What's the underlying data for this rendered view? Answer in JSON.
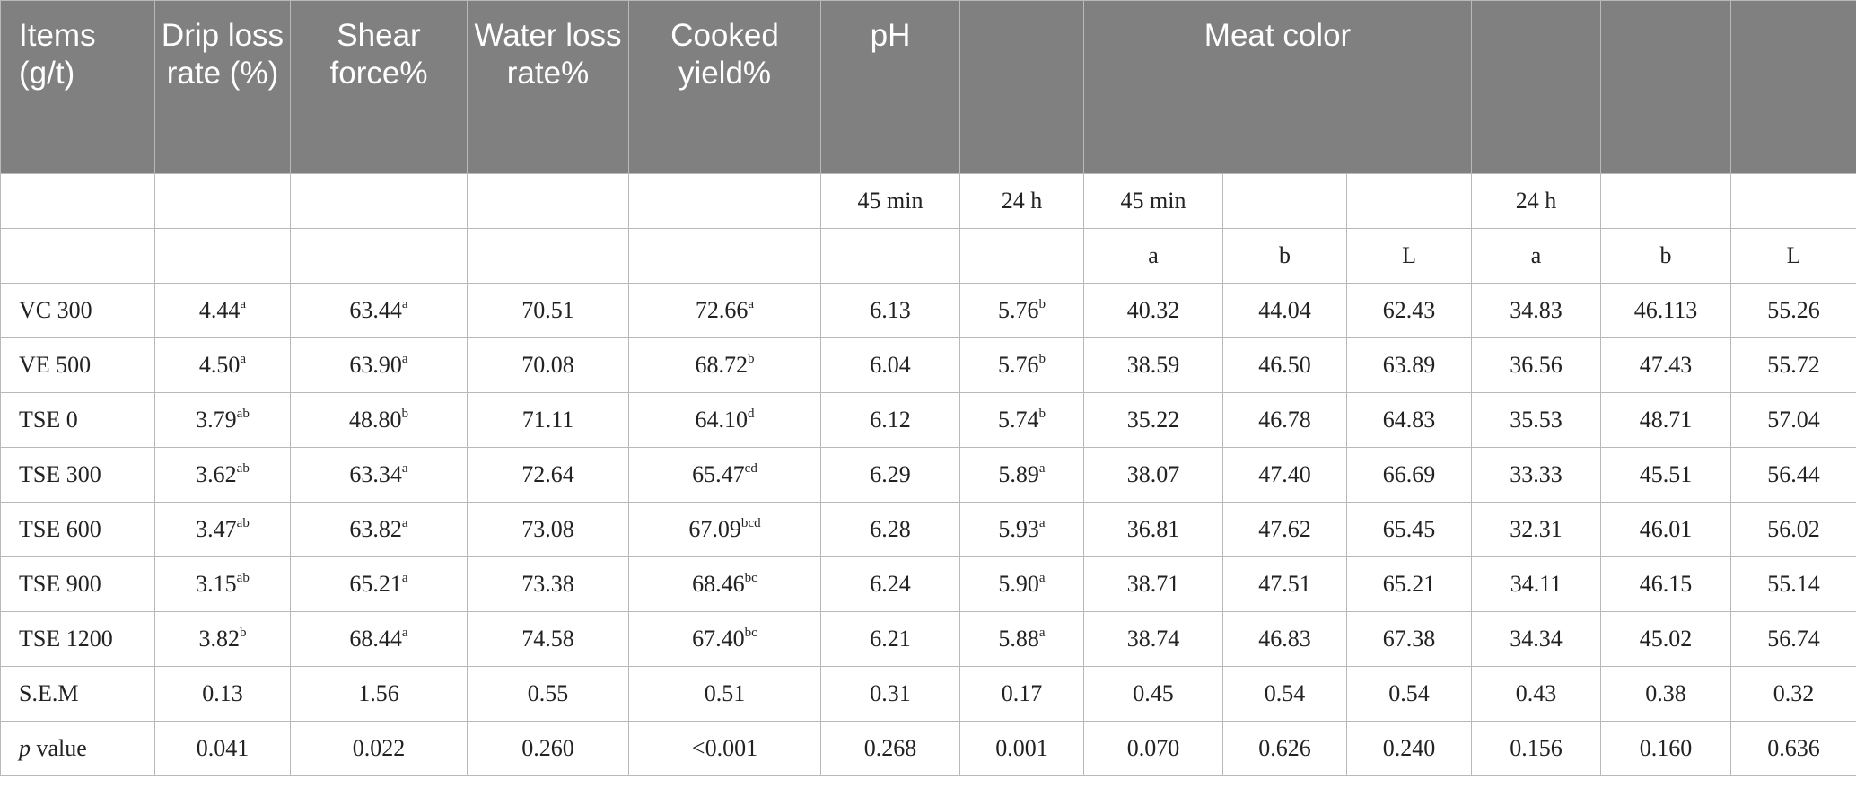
{
  "headers": {
    "items": "Items (g/t)",
    "drip": "Drip loss rate (%)",
    "shear": "Shear force%",
    "water": "Water loss rate%",
    "cooked": "Cooked yield%",
    "ph": "pH",
    "meat_color": "Meat color"
  },
  "subheader_time": [
    "",
    "",
    "",
    "",
    "",
    "45 min",
    "24 h",
    "45 min",
    "",
    "",
    "24 h",
    "",
    ""
  ],
  "subheader_color": [
    "",
    "",
    "",
    "",
    "",
    "",
    "",
    "a",
    "b",
    "L",
    "a",
    "b",
    "L"
  ],
  "rows": [
    {
      "label": "VC 300",
      "cells": [
        {
          "v": "4.44",
          "s": "a"
        },
        {
          "v": "63.44",
          "s": "a"
        },
        {
          "v": "70.51",
          "s": ""
        },
        {
          "v": "72.66",
          "s": "a"
        },
        {
          "v": "6.13",
          "s": ""
        },
        {
          "v": "5.76",
          "s": "b"
        },
        {
          "v": "40.32",
          "s": ""
        },
        {
          "v": "44.04",
          "s": ""
        },
        {
          "v": "62.43",
          "s": ""
        },
        {
          "v": "34.83",
          "s": ""
        },
        {
          "v": "46.113",
          "s": ""
        },
        {
          "v": "55.26",
          "s": ""
        }
      ]
    },
    {
      "label": "VE 500",
      "cells": [
        {
          "v": "4.50",
          "s": "a"
        },
        {
          "v": "63.90",
          "s": "a"
        },
        {
          "v": "70.08",
          "s": ""
        },
        {
          "v": "68.72",
          "s": "b"
        },
        {
          "v": "6.04",
          "s": ""
        },
        {
          "v": "5.76",
          "s": "b"
        },
        {
          "v": "38.59",
          "s": ""
        },
        {
          "v": "46.50",
          "s": ""
        },
        {
          "v": "63.89",
          "s": ""
        },
        {
          "v": "36.56",
          "s": ""
        },
        {
          "v": "47.43",
          "s": ""
        },
        {
          "v": "55.72",
          "s": ""
        }
      ]
    },
    {
      "label": "TSE 0",
      "cells": [
        {
          "v": "3.79",
          "s": "ab"
        },
        {
          "v": "48.80",
          "s": "b"
        },
        {
          "v": "71.11",
          "s": ""
        },
        {
          "v": "64.10",
          "s": "d"
        },
        {
          "v": "6.12",
          "s": ""
        },
        {
          "v": "5.74",
          "s": "b"
        },
        {
          "v": "35.22",
          "s": ""
        },
        {
          "v": "46.78",
          "s": ""
        },
        {
          "v": "64.83",
          "s": ""
        },
        {
          "v": "35.53",
          "s": ""
        },
        {
          "v": "48.71",
          "s": ""
        },
        {
          "v": "57.04",
          "s": ""
        }
      ]
    },
    {
      "label": "TSE 300",
      "cells": [
        {
          "v": "3.62",
          "s": "ab"
        },
        {
          "v": "63.34",
          "s": "a"
        },
        {
          "v": "72.64",
          "s": ""
        },
        {
          "v": "65.47",
          "s": "cd"
        },
        {
          "v": "6.29",
          "s": ""
        },
        {
          "v": "5.89",
          "s": "a"
        },
        {
          "v": "38.07",
          "s": ""
        },
        {
          "v": "47.40",
          "s": ""
        },
        {
          "v": "66.69",
          "s": ""
        },
        {
          "v": "33.33",
          "s": ""
        },
        {
          "v": "45.51",
          "s": ""
        },
        {
          "v": "56.44",
          "s": ""
        }
      ]
    },
    {
      "label": "TSE 600",
      "cells": [
        {
          "v": "3.47",
          "s": "ab"
        },
        {
          "v": "63.82",
          "s": "a"
        },
        {
          "v": "73.08",
          "s": ""
        },
        {
          "v": "67.09",
          "s": "bcd"
        },
        {
          "v": "6.28",
          "s": ""
        },
        {
          "v": "5.93",
          "s": "a"
        },
        {
          "v": "36.81",
          "s": ""
        },
        {
          "v": "47.62",
          "s": ""
        },
        {
          "v": "65.45",
          "s": ""
        },
        {
          "v": "32.31",
          "s": ""
        },
        {
          "v": "46.01",
          "s": ""
        },
        {
          "v": "56.02",
          "s": ""
        }
      ]
    },
    {
      "label": "TSE 900",
      "cells": [
        {
          "v": "3.15",
          "s": "ab"
        },
        {
          "v": "65.21",
          "s": "a"
        },
        {
          "v": "73.38",
          "s": ""
        },
        {
          "v": "68.46",
          "s": "bc"
        },
        {
          "v": "6.24",
          "s": ""
        },
        {
          "v": "5.90",
          "s": "a"
        },
        {
          "v": "38.71",
          "s": ""
        },
        {
          "v": "47.51",
          "s": ""
        },
        {
          "v": "65.21",
          "s": ""
        },
        {
          "v": "34.11",
          "s": ""
        },
        {
          "v": "46.15",
          "s": ""
        },
        {
          "v": "55.14",
          "s": ""
        }
      ]
    },
    {
      "label": "TSE 1200",
      "cells": [
        {
          "v": "3.82",
          "s": "b"
        },
        {
          "v": "68.44",
          "s": "a"
        },
        {
          "v": "74.58",
          "s": ""
        },
        {
          "v": "67.40",
          "s": "bc"
        },
        {
          "v": "6.21",
          "s": ""
        },
        {
          "v": "5.88",
          "s": "a"
        },
        {
          "v": "38.74",
          "s": ""
        },
        {
          "v": "46.83",
          "s": ""
        },
        {
          "v": "67.38",
          "s": ""
        },
        {
          "v": "34.34",
          "s": ""
        },
        {
          "v": "45.02",
          "s": ""
        },
        {
          "v": "56.74",
          "s": ""
        }
      ]
    },
    {
      "label": "S.E.M",
      "cells": [
        {
          "v": "0.13",
          "s": ""
        },
        {
          "v": "1.56",
          "s": ""
        },
        {
          "v": "0.55",
          "s": ""
        },
        {
          "v": "0.51",
          "s": ""
        },
        {
          "v": "0.31",
          "s": ""
        },
        {
          "v": "0.17",
          "s": ""
        },
        {
          "v": "0.45",
          "s": ""
        },
        {
          "v": "0.54",
          "s": ""
        },
        {
          "v": "0.54",
          "s": ""
        },
        {
          "v": "0.43",
          "s": ""
        },
        {
          "v": "0.38",
          "s": ""
        },
        {
          "v": "0.32",
          "s": ""
        }
      ]
    },
    {
      "label": "value",
      "label_prefix": "p",
      "cells": [
        {
          "v": "0.041",
          "s": ""
        },
        {
          "v": "0.022",
          "s": ""
        },
        {
          "v": "0.260",
          "s": ""
        },
        {
          "v": "<0.001",
          "s": ""
        },
        {
          "v": "0.268",
          "s": ""
        },
        {
          "v": "0.001",
          "s": ""
        },
        {
          "v": "0.070",
          "s": ""
        },
        {
          "v": "0.626",
          "s": ""
        },
        {
          "v": "0.240",
          "s": ""
        },
        {
          "v": "0.156",
          "s": ""
        },
        {
          "v": "0.160",
          "s": ""
        },
        {
          "v": "0.636",
          "s": ""
        }
      ]
    }
  ]
}
